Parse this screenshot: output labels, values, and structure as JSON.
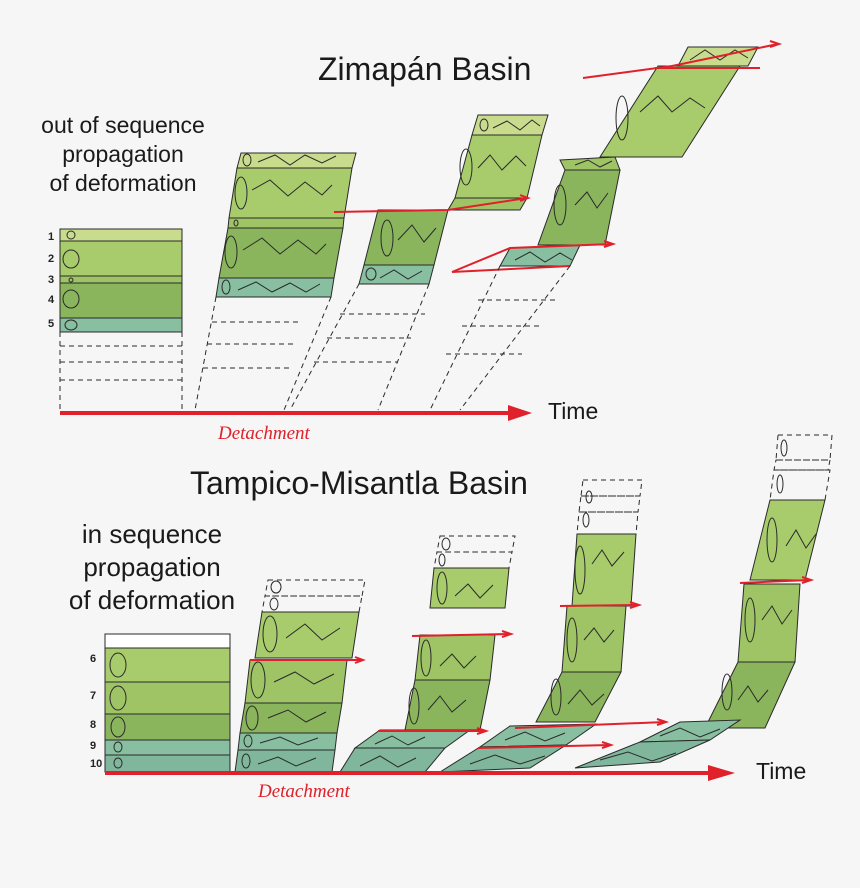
{
  "top_panel": {
    "title": "Zimapán Basin",
    "description": [
      "out of sequence",
      "propagation",
      "of deformation"
    ],
    "time_label": "Time",
    "detachment_label": "Detachment",
    "layer_numbers": [
      "1",
      "2",
      "3",
      "4",
      "5"
    ]
  },
  "bottom_panel": {
    "title": "Tampico-Misantla Basin",
    "description": [
      "in sequence",
      "propagation",
      "of deformation"
    ],
    "time_label": "Time",
    "detachment_label": "Detachment",
    "layer_numbers": [
      "6",
      "7",
      "8",
      "9",
      "10"
    ]
  },
  "colors": {
    "thrust": "#e0202a",
    "light_green": "#c9dc8e",
    "mid_green": "#a8cc6c",
    "dark_green": "#8ab55c",
    "teal": "#88bfa0",
    "outline": "#2a2a2a"
  }
}
